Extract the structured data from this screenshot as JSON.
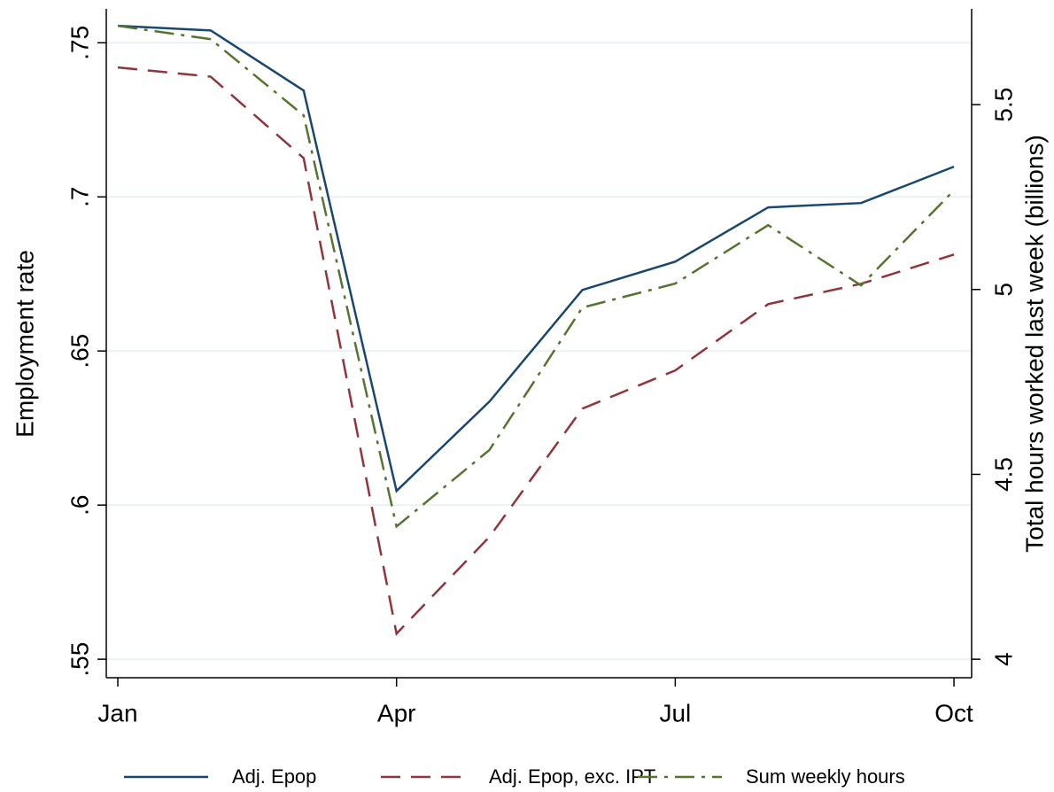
{
  "chart_data": {
    "type": "line",
    "categories": [
      "Jan",
      null,
      null,
      "Apr",
      null,
      null,
      "Jul",
      null,
      null,
      "Oct"
    ],
    "xlim": [
      0.876,
      10.19
    ],
    "ylabel": "Employment rate",
    "y2label": "Total hours worked last week (billions)",
    "ylim": [
      0.544,
      0.761
    ],
    "yticks": [
      {
        "value": 0.55,
        "label": ".55"
      },
      {
        "value": 0.6,
        "label": ".6"
      },
      {
        "value": 0.65,
        "label": ".65"
      },
      {
        "value": 0.7,
        "label": ".7"
      },
      {
        "value": 0.75,
        "label": ".75"
      }
    ],
    "y2lim": [
      3.95,
      5.759
    ],
    "y2ticks": [
      4,
      4.5,
      5,
      5.5
    ],
    "grid": true,
    "legend": "bottom",
    "series": [
      {
        "name": "Adj. Epop",
        "color": "#1a476f",
        "dash": "solid",
        "values": [
          0.7555,
          0.754,
          0.7345,
          0.6046,
          0.6336,
          0.6698,
          0.679,
          0.6966,
          0.698,
          0.7098
        ]
      },
      {
        "name": "Adj. Epop, exc. IPT",
        "color": "#90353b",
        "dash": "dash",
        "values": [
          0.742,
          0.739,
          0.7126,
          0.5583,
          0.5897,
          0.6313,
          0.6437,
          0.6652,
          0.6718,
          0.6813
        ]
      },
      {
        "name": "Sum weekly hours",
        "color": "#55752f",
        "dash": "dashdot",
        "axis": "y2",
        "values": [
          5.713,
          5.677,
          5.471,
          4.359,
          4.566,
          4.951,
          5.016,
          5.174,
          5.011,
          5.268
        ]
      }
    ]
  }
}
